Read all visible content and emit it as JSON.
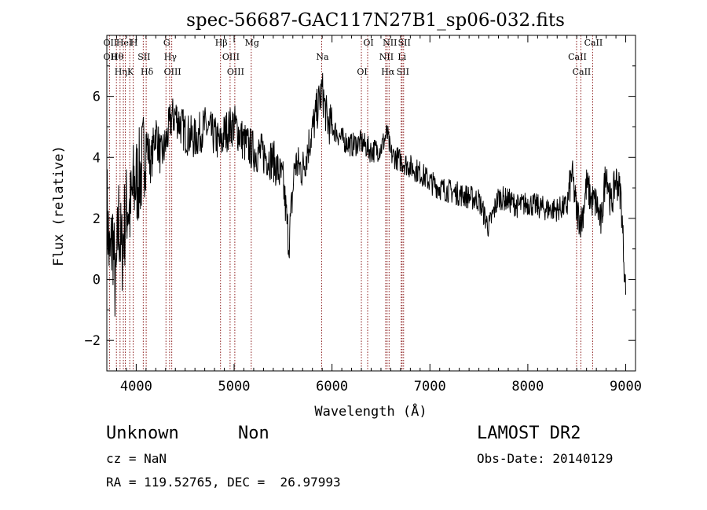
{
  "chart_data": {
    "type": "line",
    "title": "spec-56687-GAC117N27B1_sp06-032.fits",
    "xlabel": "Wavelength (Å)",
    "ylabel": "Flux (relative)",
    "xlim": [
      3700,
      9100
    ],
    "ylim": [
      -3,
      8
    ],
    "xticks": [
      4000,
      5000,
      6000,
      7000,
      8000,
      9000
    ],
    "xtick_labels": [
      "4000",
      "5000",
      "6000",
      "7000",
      "8000",
      "9000"
    ],
    "yticks": [
      -2,
      0,
      2,
      4,
      6
    ],
    "ytick_labels": [
      "−2",
      "0",
      "2",
      "4",
      "6"
    ],
    "grid": false,
    "line_color": "#000000",
    "marker_color": "#8b1a1a",
    "series": [
      {
        "x": [
          3700,
          3730,
          3760,
          3790,
          3820,
          3850,
          3880,
          3910,
          3940,
          3970,
          4000,
          4050,
          4100,
          4150,
          4200,
          4250,
          4300,
          4350,
          4400,
          4500,
          4600,
          4700,
          4800,
          4860,
          4900,
          5000,
          5100,
          5200,
          5300,
          5400,
          5500,
          5560,
          5620,
          5700,
          5800,
          5850,
          5900,
          5950,
          6000,
          6100,
          6200,
          6300,
          6400,
          6500,
          6563,
          6600,
          6700,
          6800,
          6900,
          7000,
          7100,
          7200,
          7300,
          7400,
          7500,
          7600,
          7700,
          7800,
          7900,
          8000,
          8100,
          8200,
          8300,
          8400,
          8450,
          8500,
          8550,
          8600,
          8650,
          8700,
          8750,
          8800,
          8850,
          8900,
          8950,
          9000
        ],
        "y": [
          2.5,
          0.5,
          1.5,
          -0.5,
          2.0,
          0.8,
          1.8,
          2.5,
          2.2,
          3.0,
          3.2,
          3.5,
          4.6,
          3.8,
          4.9,
          4.0,
          4.4,
          5.2,
          5.4,
          4.8,
          4.6,
          5.0,
          4.7,
          4.4,
          4.8,
          5.1,
          4.5,
          4.2,
          4.1,
          3.9,
          3.2,
          1.2,
          3.8,
          3.6,
          4.9,
          5.6,
          6.2,
          5.2,
          5.0,
          4.6,
          4.4,
          4.5,
          4.2,
          4.3,
          4.8,
          4.1,
          3.9,
          3.7,
          3.5,
          3.2,
          3.0,
          2.9,
          2.8,
          2.7,
          2.6,
          1.7,
          2.7,
          2.6,
          2.4,
          2.5,
          2.4,
          2.3,
          2.3,
          2.4,
          3.5,
          2.2,
          1.9,
          3.1,
          2.6,
          2.5,
          1.8,
          3.7,
          2.4,
          3.3,
          2.8,
          -0.5
        ]
      }
    ],
    "line_markers": [
      {
        "w": 3727,
        "labels": [
          "OII",
          "OII"
        ]
      },
      {
        "w": 3798,
        "labels": [
          "Hθ"
        ]
      },
      {
        "w": 3835,
        "labels": [
          "Hη"
        ]
      },
      {
        "w": 3869,
        "labels": [
          "HeI"
        ]
      },
      {
        "w": 3889,
        "labels": [
          ""
        ]
      },
      {
        "w": 3934,
        "labels": [
          "K"
        ]
      },
      {
        "w": 3969,
        "labels": [
          "H"
        ]
      },
      {
        "w": 4072,
        "labels": [
          "SII"
        ]
      },
      {
        "w": 4102,
        "labels": [
          "Hδ"
        ]
      },
      {
        "w": 4304,
        "labels": [
          "G"
        ]
      },
      {
        "w": 4341,
        "labels": [
          "Hγ"
        ]
      },
      {
        "w": 4363,
        "labels": [
          "OIII"
        ]
      },
      {
        "w": 4861,
        "labels": [
          "Hβ"
        ]
      },
      {
        "w": 4959,
        "labels": [
          "OIII"
        ]
      },
      {
        "w": 5007,
        "labels": [
          "OIII"
        ]
      },
      {
        "w": 5175,
        "labels": [
          "Mg"
        ]
      },
      {
        "w": 5894,
        "labels": [
          "Na"
        ]
      },
      {
        "w": 6300,
        "labels": [
          "OI"
        ]
      },
      {
        "w": 6364,
        "labels": [
          "OI"
        ]
      },
      {
        "w": 6548,
        "labels": [
          "NII"
        ]
      },
      {
        "w": 6563,
        "labels": [
          "Hα"
        ]
      },
      {
        "w": 6583,
        "labels": [
          "NII"
        ]
      },
      {
        "w": 6707,
        "labels": [
          "Li"
        ]
      },
      {
        "w": 6716,
        "labels": [
          "SII"
        ]
      },
      {
        "w": 6731,
        "labels": [
          "SII"
        ]
      },
      {
        "w": 8498,
        "labels": [
          "CaII"
        ]
      },
      {
        "w": 8542,
        "labels": [
          "CaII"
        ]
      },
      {
        "w": 8662,
        "labels": [
          "CaII"
        ]
      }
    ]
  },
  "info": {
    "classification": "Unknown",
    "subclass": "Non",
    "survey": "LAMOST DR2",
    "cz": "cz = NaN",
    "obs_date": "Obs-Date: 20140129",
    "coords": "RA = 119.52765, DEC =  26.97993"
  }
}
